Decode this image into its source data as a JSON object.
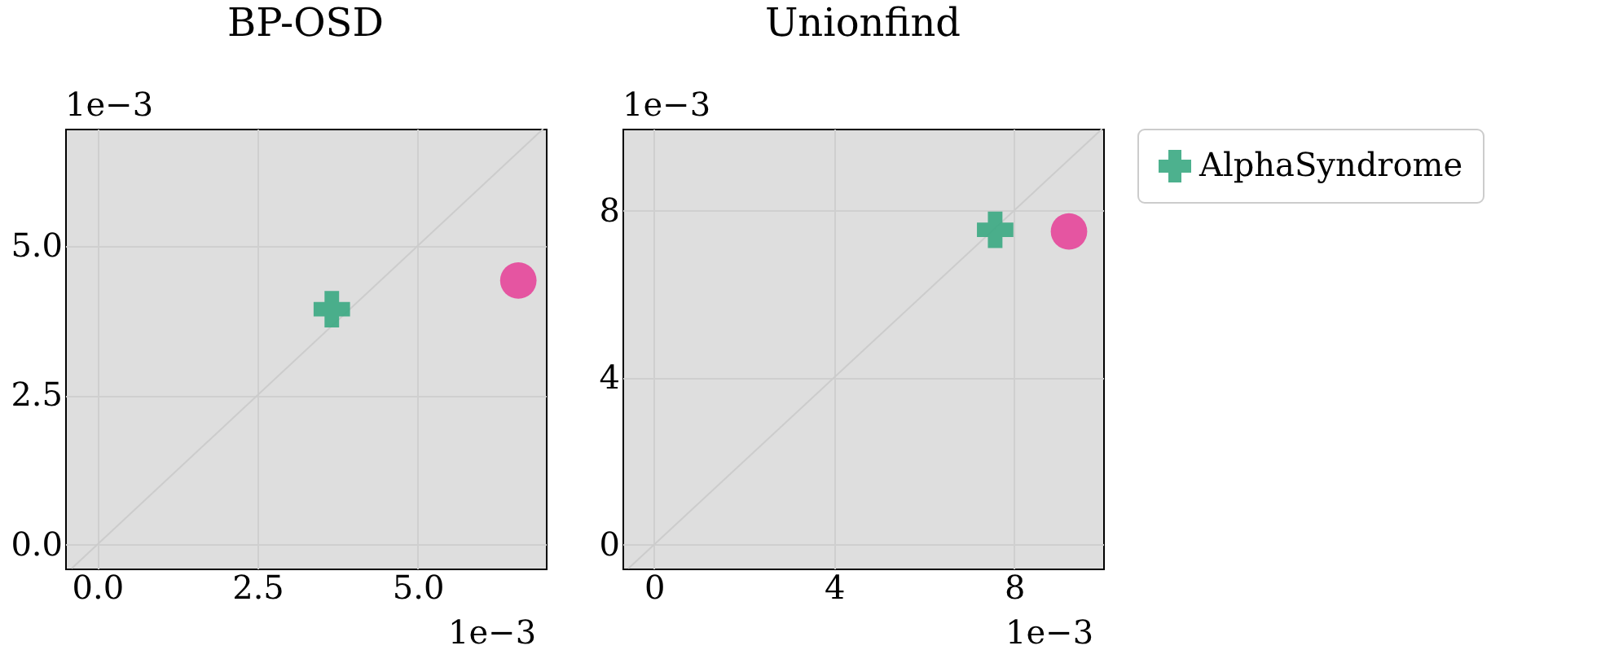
{
  "chart_data": [
    {
      "type": "scatter",
      "title": "BP-OSD",
      "xlim": [
        -0.5,
        7.0
      ],
      "ylim": [
        -0.4,
        6.96
      ],
      "xticks": [
        {
          "value": 0,
          "label": "0.0"
        },
        2.5,
        {
          "value": 5,
          "label": "5.0"
        }
      ],
      "yticks": [
        {
          "value": 0,
          "label": "0.0"
        },
        2.5,
        {
          "value": 5,
          "label": "5.0"
        }
      ],
      "grid": true,
      "legend": "right",
      "annotations": [
        "1e−3",
        "1e−3"
      ],
      "series": [
        {
          "type": "line",
          "color": "#cccccc",
          "x": [
            -0.4,
            6.96
          ],
          "values": [
            -0.4,
            6.96
          ]
        },
        {
          "name": "AlphaSyndrome",
          "color": "#3aa882",
          "marker": "cross",
          "x": [
            3.66
          ],
          "values": [
            3.94
          ]
        },
        {
          "color": "#e6469a",
          "marker": "circle",
          "x": [
            6.57
          ],
          "values": [
            4.42
          ]
        }
      ]
    },
    {
      "type": "scatter",
      "title": "Unionfind",
      "xlim": [
        -0.7,
        9.98
      ],
      "ylim": [
        -0.57,
        9.96
      ],
      "xticks": [
        0,
        4,
        8
      ],
      "yticks": [
        0,
        4,
        8
      ],
      "grid": true,
      "legend": "right",
      "annotations": [
        "1e−3",
        "1e−3"
      ],
      "series": [
        {
          "type": "line",
          "color": "#cccccc",
          "x": [
            -0.57,
            9.96
          ],
          "values": [
            -0.57,
            9.96
          ]
        },
        {
          "name": "AlphaSyndrome",
          "color": "#3aa882",
          "marker": "cross",
          "x": [
            7.58
          ],
          "values": [
            7.54
          ]
        },
        {
          "color": "#e6469a",
          "marker": "circle",
          "x": [
            9.22
          ],
          "values": [
            7.5
          ]
        }
      ]
    }
  ]
}
